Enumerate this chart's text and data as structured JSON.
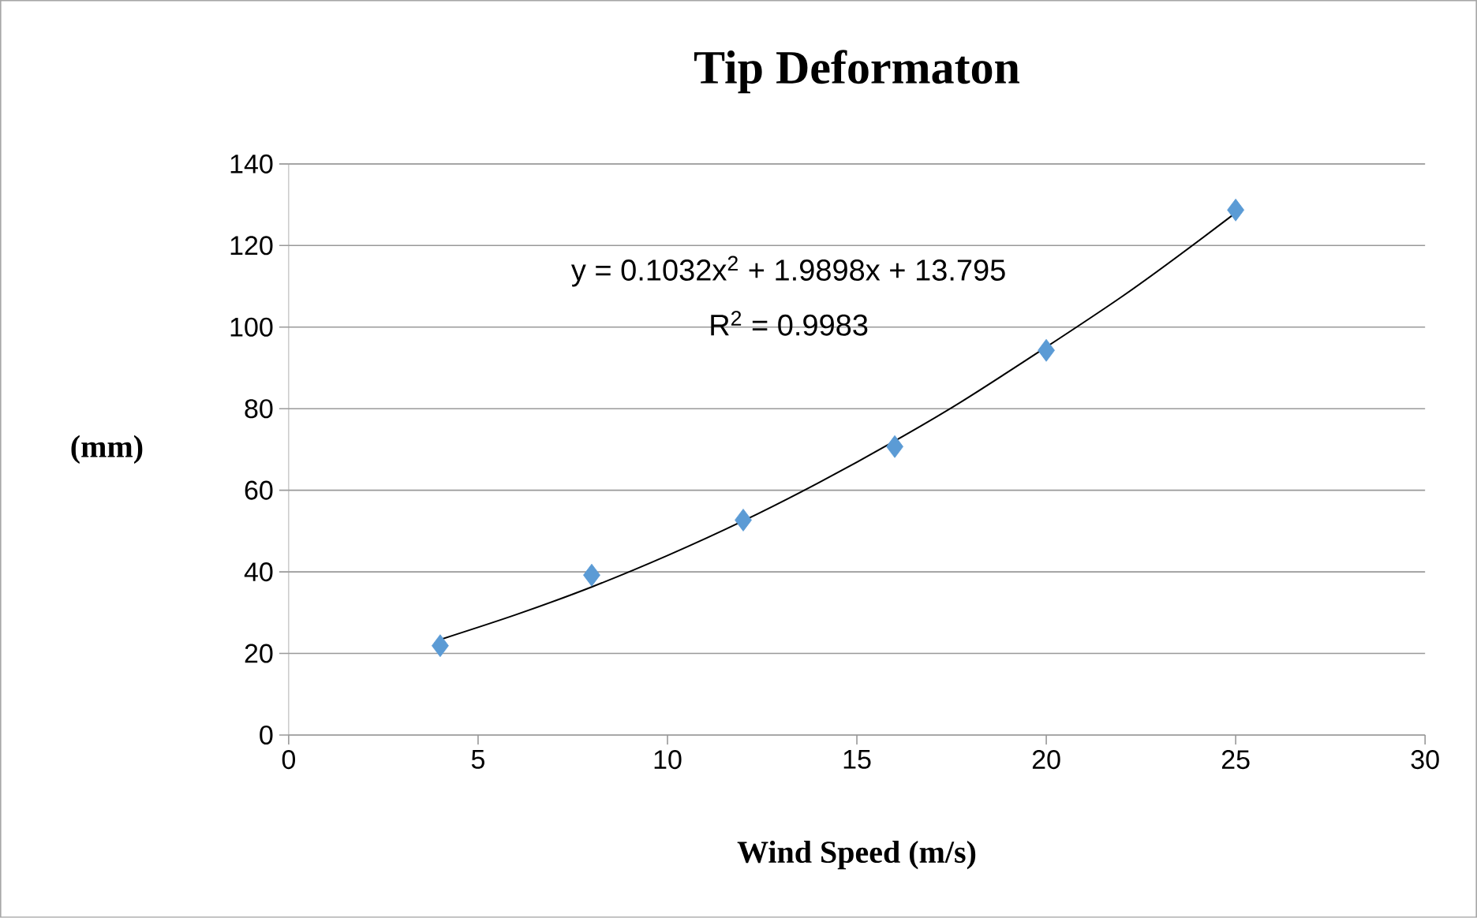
{
  "chart_data": {
    "type": "scatter",
    "title": "Tip Deformaton",
    "xlabel": "Wind Speed (m/s)",
    "ylabel": "(mm)",
    "annotations": [
      "y = 0.1032x$^{2}$ + 1.9898x + 13.795",
      "R$^{2}$ = 0.9983"
    ],
    "series": [
      {
        "type": "scatter",
        "color": "#5b9bd5",
        "marker": "diamond",
        "x": [
          4,
          8,
          12,
          16,
          20,
          25
        ],
        "values": [
          21.9,
          39.2,
          52.7,
          70.7,
          94.3,
          128.7
        ]
      },
      {
        "type": "line",
        "color": "#000000",
        "marker": "none",
        "line_style": "solid",
        "x": [
          4,
          6,
          8,
          10,
          12,
          14,
          16,
          18,
          22,
          25
        ],
        "values": [
          23.4,
          29.5,
          36.3,
          44.0,
          52.5,
          61.9,
          72.1,
          83.1,
          107.5,
          128.0
        ]
      }
    ],
    "xlim": [
      0,
      30
    ],
    "ylim": [
      0,
      140
    ],
    "xticks": [
      0,
      5,
      10,
      15,
      20,
      25,
      30
    ],
    "yticks": [
      0,
      20,
      40,
      60,
      80,
      100,
      120,
      140
    ],
    "grid": "y",
    "legend": false
  }
}
